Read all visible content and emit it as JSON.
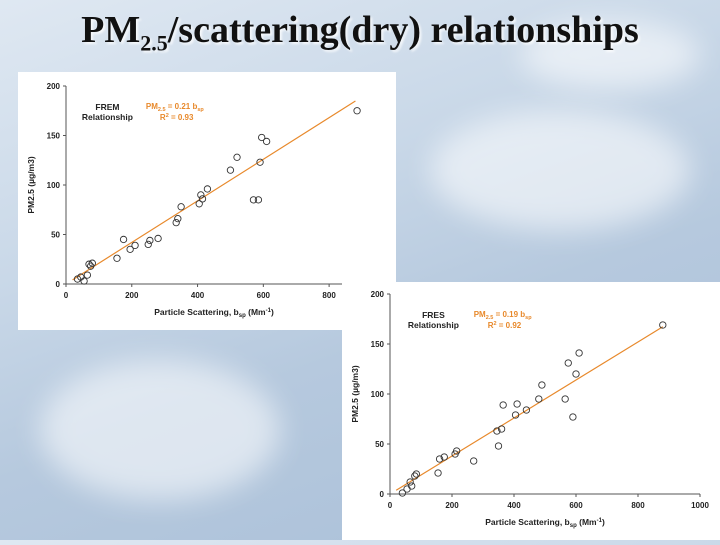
{
  "slide": {
    "title_main": "PM",
    "title_sub": "2.5",
    "title_rest": "/scattering(dry) relationships"
  },
  "chart_data": [
    {
      "type": "scatter",
      "name": "FREM",
      "label_line1": "FREM",
      "label_line2": "Relationship",
      "equation_prefix": "PM",
      "equation_sub": "2.5",
      "equation_mid": " = 0.21 b",
      "equation_sub2": "sp",
      "r2_text": " = 0.93",
      "r2_prefix": "R",
      "r2_sup": "2",
      "xlabel_prefix": "Particle Scattering, b",
      "xlabel_sub": "sp",
      "xlabel_unit": " (Mm",
      "xlabel_sup": "-1",
      "xlabel_close": ")",
      "ylabel": "PM2.5 (µg/m3)",
      "xlim": [
        0,
        900
      ],
      "ylim": [
        0,
        200
      ],
      "xticks": [
        0,
        200,
        400,
        600,
        800
      ],
      "yticks": [
        0,
        50,
        100,
        150,
        200
      ],
      "fit": {
        "slope": 0.21,
        "x_range": [
          20,
          880
        ]
      },
      "point_color": "#333333",
      "fit_color": "#e8892b",
      "points": [
        [
          35,
          5
        ],
        [
          45,
          7
        ],
        [
          55,
          3
        ],
        [
          65,
          9
        ],
        [
          70,
          20
        ],
        [
          75,
          18
        ],
        [
          80,
          21
        ],
        [
          155,
          26
        ],
        [
          175,
          45
        ],
        [
          195,
          35
        ],
        [
          210,
          39
        ],
        [
          250,
          40
        ],
        [
          255,
          44
        ],
        [
          280,
          46
        ],
        [
          335,
          62
        ],
        [
          340,
          66
        ],
        [
          350,
          78
        ],
        [
          405,
          81
        ],
        [
          410,
          90
        ],
        [
          415,
          86
        ],
        [
          430,
          96
        ],
        [
          500,
          115
        ],
        [
          520,
          128
        ],
        [
          570,
          85
        ],
        [
          585,
          85
        ],
        [
          590,
          123
        ],
        [
          595,
          148
        ],
        [
          610,
          144
        ],
        [
          885,
          175
        ]
      ]
    },
    {
      "type": "scatter",
      "name": "FRES",
      "label_line1": "FRES",
      "label_line2": "Relationship",
      "equation_prefix": "PM",
      "equation_sub": "2.5",
      "equation_mid": " = 0.19 b",
      "equation_sub2": "sp",
      "r2_text": " = 0.92",
      "r2_prefix": "R",
      "r2_sup": "2",
      "xlabel_prefix": "Particle Scattering, b",
      "xlabel_sub": "sp",
      "xlabel_unit": " (Mm",
      "xlabel_sup": "-1",
      "xlabel_close": ")",
      "ylabel": "PM2.5 (µg/m3)",
      "xlim": [
        0,
        1000
      ],
      "ylim": [
        0,
        200
      ],
      "xticks": [
        0,
        200,
        400,
        600,
        800,
        1000
      ],
      "yticks": [
        0,
        50,
        100,
        150,
        200
      ],
      "fit": {
        "slope": 0.19,
        "x_range": [
          20,
          880
        ]
      },
      "point_color": "#333333",
      "fit_color": "#e8892b",
      "points": [
        [
          40,
          1
        ],
        [
          55,
          5
        ],
        [
          65,
          12
        ],
        [
          70,
          8
        ],
        [
          80,
          18
        ],
        [
          85,
          20
        ],
        [
          155,
          21
        ],
        [
          160,
          35
        ],
        [
          175,
          37
        ],
        [
          210,
          40
        ],
        [
          215,
          43
        ],
        [
          270,
          33
        ],
        [
          345,
          63
        ],
        [
          350,
          48
        ],
        [
          360,
          65
        ],
        [
          365,
          89
        ],
        [
          405,
          79
        ],
        [
          410,
          90
        ],
        [
          440,
          84
        ],
        [
          480,
          95
        ],
        [
          490,
          109
        ],
        [
          565,
          95
        ],
        [
          575,
          131
        ],
        [
          590,
          77
        ],
        [
          600,
          120
        ],
        [
          610,
          141
        ],
        [
          880,
          169
        ]
      ]
    }
  ]
}
